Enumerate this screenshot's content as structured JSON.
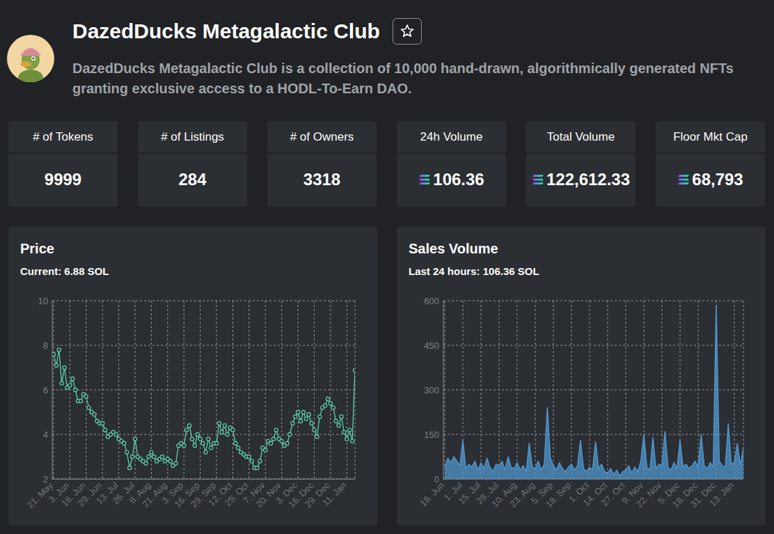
{
  "header": {
    "title": "DazedDucks Metagalactic Club",
    "description": "DazedDucks Metagalactic Club is a collection of 10,000 hand-drawn, algorithmically generated NFTs granting exclusive access to a HODL-To-Earn DAO."
  },
  "stats": [
    {
      "label": "# of Tokens",
      "value": "9999"
    },
    {
      "label": "# of Listings",
      "value": "284"
    },
    {
      "label": "# of Owners",
      "value": "3318"
    },
    {
      "label": "24h Volume",
      "value": "106.36"
    },
    {
      "label": "Total Volume",
      "value": "122,612.33"
    },
    {
      "label": "Floor Mkt Cap",
      "value": "68,793"
    }
  ],
  "chart_data": [
    {
      "type": "line",
      "title": "Price",
      "subtitle": "Current: 6.88 SOL",
      "color": "#5ecfb1",
      "marker": "circle",
      "grid": true,
      "categories": [
        "21. May",
        null,
        null,
        null,
        null,
        null,
        "3. Jun",
        null,
        null,
        null,
        null,
        null,
        "16. Jun",
        null,
        null,
        null,
        null,
        null,
        "29. Jun",
        null,
        null,
        null,
        null,
        null,
        "13. Jul",
        null,
        null,
        null,
        null,
        null,
        "26. Jul",
        null,
        null,
        null,
        null,
        null,
        "8. Aug",
        null,
        null,
        null,
        null,
        null,
        "21. Aug",
        null,
        null,
        null,
        null,
        null,
        "3. Sep",
        null,
        null,
        null,
        null,
        null,
        "16. Sep",
        null,
        null,
        null,
        null,
        null,
        "29. Sep",
        null,
        null,
        null,
        null,
        null,
        "12. Oct",
        null,
        null,
        null,
        null,
        null,
        "25. Oct",
        null,
        null,
        null,
        null,
        null,
        "7. Nov",
        null,
        null,
        null,
        null,
        null,
        "20. Nov",
        null,
        null,
        null,
        null,
        null,
        "3. Dec",
        null,
        null,
        null,
        null,
        null,
        "16. Dec",
        null,
        null,
        null,
        null,
        null,
        "29. Dec",
        null,
        null,
        null,
        null,
        null,
        "11. Jan",
        null,
        null,
        null
      ],
      "values": [
        7.6,
        7.1,
        7.8,
        6.3,
        7.0,
        6.1,
        6.2,
        6.5,
        6.0,
        5.5,
        5.5,
        5.8,
        5.7,
        5.2,
        5.0,
        4.9,
        4.6,
        4.5,
        4.5,
        4.2,
        3.9,
        4.0,
        4.1,
        4.0,
        3.8,
        3.7,
        3.6,
        3.2,
        2.5,
        3.0,
        3.8,
        3.0,
        2.9,
        2.8,
        2.7,
        3.0,
        3.2,
        3.0,
        2.8,
        2.9,
        3.0,
        2.8,
        2.9,
        2.8,
        2.6,
        2.7,
        3.5,
        3.6,
        3.5,
        4.2,
        4.4,
        3.8,
        3.5,
        4.0,
        3.8,
        3.6,
        3.2,
        3.8,
        3.4,
        3.6,
        3.6,
        4.5,
        4.1,
        4.4,
        4.0,
        4.3,
        4.2,
        3.6,
        3.4,
        3.2,
        3.1,
        3.0,
        3.0,
        2.8,
        2.5,
        2.5,
        2.8,
        3.4,
        3.3,
        3.7,
        3.6,
        3.8,
        4.2,
        3.8,
        3.7,
        3.5,
        3.6,
        4.0,
        4.5,
        4.8,
        5.0,
        4.6,
        5.0,
        4.7,
        4.9,
        4.5,
        4.2,
        3.9,
        4.8,
        5.2,
        5.3,
        5.6,
        5.4,
        5.2,
        4.6,
        4.4,
        4.8,
        4.1,
        3.8,
        4.2,
        3.7,
        6.88
      ],
      "ylim": [
        2,
        10
      ],
      "yticks": [
        2,
        4,
        6,
        8,
        10
      ]
    },
    {
      "type": "area",
      "title": "Sales Volume",
      "subtitle": "Last 24 hours: 106.36 SOL",
      "color": "#4f95cc",
      "grid": true,
      "categories": [
        "18. Jun",
        null,
        null,
        null,
        null,
        null,
        "1. Jul",
        null,
        null,
        null,
        null,
        null,
        "15. Jul",
        null,
        null,
        null,
        null,
        null,
        "28. Jul",
        null,
        null,
        null,
        null,
        null,
        "10. Aug",
        null,
        null,
        null,
        null,
        null,
        "23. Aug",
        null,
        null,
        null,
        null,
        null,
        "5. Sep",
        null,
        null,
        null,
        null,
        null,
        "18. Sep",
        null,
        null,
        null,
        null,
        null,
        "1. Oct",
        null,
        null,
        null,
        null,
        null,
        "14. Oct",
        null,
        null,
        null,
        null,
        null,
        "27. Oct",
        null,
        null,
        null,
        null,
        null,
        "9. Nov",
        null,
        null,
        null,
        null,
        null,
        "22. Nov",
        null,
        null,
        null,
        null,
        null,
        "5. Dec",
        null,
        null,
        null,
        null,
        null,
        "18. Dec",
        null,
        null,
        null,
        null,
        null,
        "31. Dec",
        null,
        null,
        null,
        null,
        null,
        "13. Jan",
        null,
        null,
        null
      ],
      "values": [
        40,
        70,
        55,
        75,
        60,
        45,
        130,
        35,
        50,
        40,
        60,
        30,
        55,
        35,
        70,
        40,
        25,
        50,
        45,
        60,
        30,
        75,
        40,
        35,
        55,
        30,
        45,
        25,
        120,
        40,
        35,
        60,
        30,
        50,
        240,
        70,
        45,
        30,
        55,
        35,
        25,
        40,
        50,
        30,
        45,
        130,
        35,
        25,
        40,
        30,
        125,
        35,
        50,
        25,
        20,
        35,
        15,
        30,
        10,
        25,
        30,
        45,
        20,
        40,
        25,
        60,
        150,
        40,
        30,
        140,
        35,
        50,
        45,
        160,
        40,
        30,
        55,
        35,
        130,
        40,
        50,
        35,
        45,
        60,
        40,
        150,
        45,
        35,
        55,
        40,
        585,
        60,
        45,
        40,
        185,
        50,
        55,
        120,
        45,
        106.36
      ],
      "ylim": [
        0,
        600
      ],
      "yticks": [
        0,
        150,
        300,
        450,
        600
      ]
    }
  ]
}
